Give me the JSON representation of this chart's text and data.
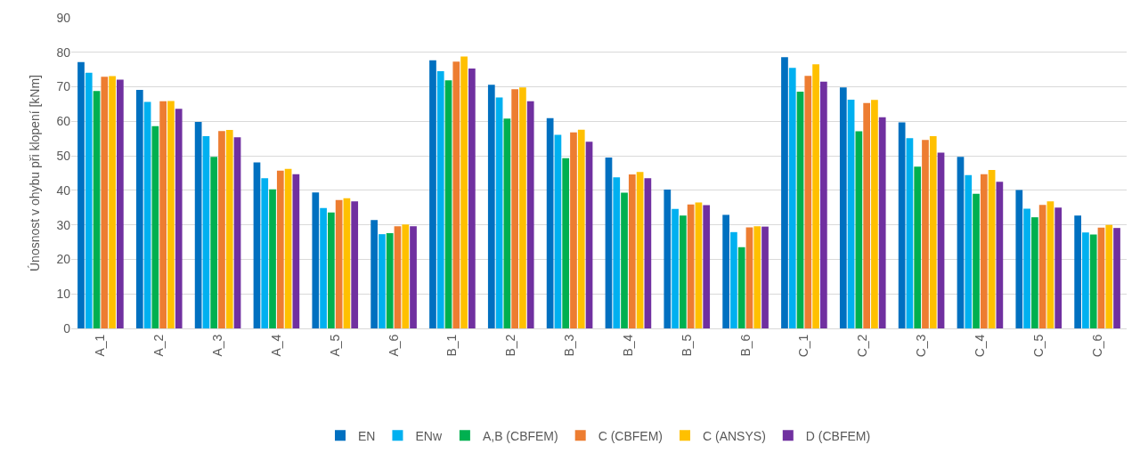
{
  "chart_data": {
    "type": "bar",
    "ylabel": "Únosnost v ohybu při klopení [kNm]",
    "categories": [
      "A_1",
      "A_2",
      "A_3",
      "A_4",
      "A_5",
      "A_6",
      "B_1",
      "B_2",
      "B_3",
      "B_4",
      "B_5",
      "B_6",
      "C_1",
      "C_2",
      "C_3",
      "C_4",
      "C_5",
      "C_6"
    ],
    "series": [
      {
        "name": "EN",
        "color": "#0070c0",
        "values": [
          77.2,
          69.1,
          59.8,
          48.1,
          39.4,
          31.4,
          77.7,
          70.6,
          60.9,
          49.5,
          40.2,
          32.9,
          78.6,
          69.8,
          59.7,
          49.7,
          40.1,
          32.7
        ]
      },
      {
        "name": "ENw",
        "color": "#00b0f0",
        "values": [
          74.1,
          65.6,
          55.7,
          43.5,
          34.9,
          27.3,
          74.5,
          66.9,
          56.1,
          43.8,
          34.6,
          27.9,
          75.5,
          66.3,
          55.1,
          44.4,
          34.7,
          27.8
        ]
      },
      {
        "name": "A,B (CBFEM)",
        "color": "#00b050",
        "values": [
          68.8,
          58.6,
          49.7,
          40.3,
          33.6,
          27.6,
          71.9,
          60.8,
          49.3,
          39.3,
          32.7,
          23.5,
          68.6,
          57.1,
          46.9,
          39.0,
          32.2,
          27.2
        ]
      },
      {
        "name": "C (CBFEM)",
        "color": "#ed7d31",
        "values": [
          72.9,
          65.8,
          57.2,
          45.7,
          37.2,
          29.6,
          77.3,
          69.3,
          56.8,
          44.6,
          35.9,
          29.3,
          73.2,
          65.3,
          54.6,
          44.7,
          35.8,
          29.2
        ]
      },
      {
        "name": "C (ANSYS)",
        "color": "#ffc000",
        "values": [
          73.1,
          65.9,
          57.5,
          46.2,
          37.7,
          30.1,
          78.8,
          69.8,
          57.6,
          45.3,
          36.5,
          29.6,
          76.5,
          66.2,
          55.7,
          45.9,
          36.8,
          30.0
        ]
      },
      {
        "name": "D (CBFEM)",
        "color": "#7030a0",
        "values": [
          72.1,
          63.6,
          55.4,
          44.7,
          36.8,
          29.6,
          75.3,
          65.8,
          54.1,
          43.5,
          35.7,
          29.5,
          71.5,
          61.2,
          50.9,
          42.5,
          35.0,
          29.1
        ]
      }
    ],
    "ylim": [
      0,
      90
    ],
    "yticks": [
      0,
      10,
      20,
      30,
      40,
      50,
      60,
      70,
      80,
      90
    ],
    "grid": "y",
    "legend": "bottom"
  }
}
